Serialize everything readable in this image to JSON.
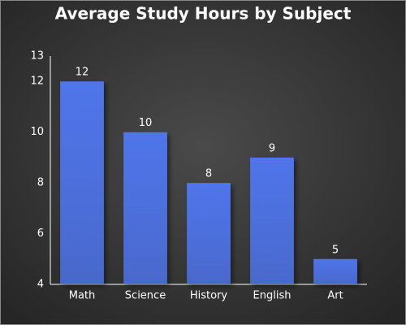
{
  "chart_data": {
    "type": "bar",
    "title": "Average Study Hours by Subject",
    "categories": [
      "Math",
      "Science",
      "History",
      "English",
      "Art"
    ],
    "values": [
      12,
      10,
      8,
      9,
      5
    ],
    "color": "#4f75ea",
    "ylim": [
      4,
      13
    ],
    "yticks": [
      4,
      6,
      8,
      10,
      12,
      13
    ],
    "grid": false
  }
}
